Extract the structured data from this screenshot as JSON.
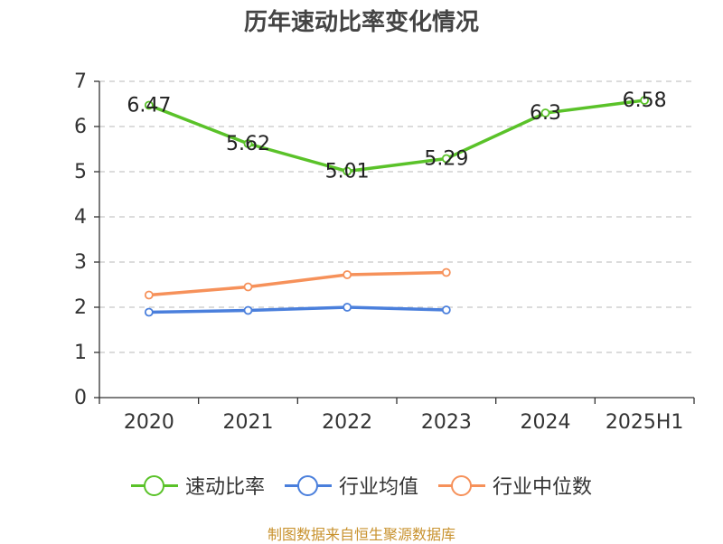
{
  "chart_data": {
    "type": "line",
    "title": "历年速动比率变化情况",
    "categories": [
      "2020",
      "2021",
      "2022",
      "2023",
      "2024",
      "2025H1"
    ],
    "ylim": [
      0,
      7
    ],
    "yticks": [
      "0",
      "1",
      "2",
      "3",
      "4",
      "5",
      "6",
      "7"
    ],
    "grid": true,
    "legend_position": "bottom",
    "series": [
      {
        "name": "速动比率",
        "color": "#5ac229",
        "values": [
          6.47,
          5.62,
          5.01,
          5.29,
          6.3,
          6.58
        ],
        "labels": [
          "6.47",
          "5.62",
          "5.01",
          "5.29",
          "6.3",
          "6.58"
        ]
      },
      {
        "name": "行业均值",
        "color": "#4a7fdc",
        "values": [
          1.89,
          1.93,
          2.0,
          1.94,
          null,
          null
        ]
      },
      {
        "name": "行业中位数",
        "color": "#f6915a",
        "values": [
          2.27,
          2.45,
          2.72,
          2.77,
          null,
          null
        ]
      }
    ]
  },
  "source": "制图数据来自恒生聚源数据库"
}
